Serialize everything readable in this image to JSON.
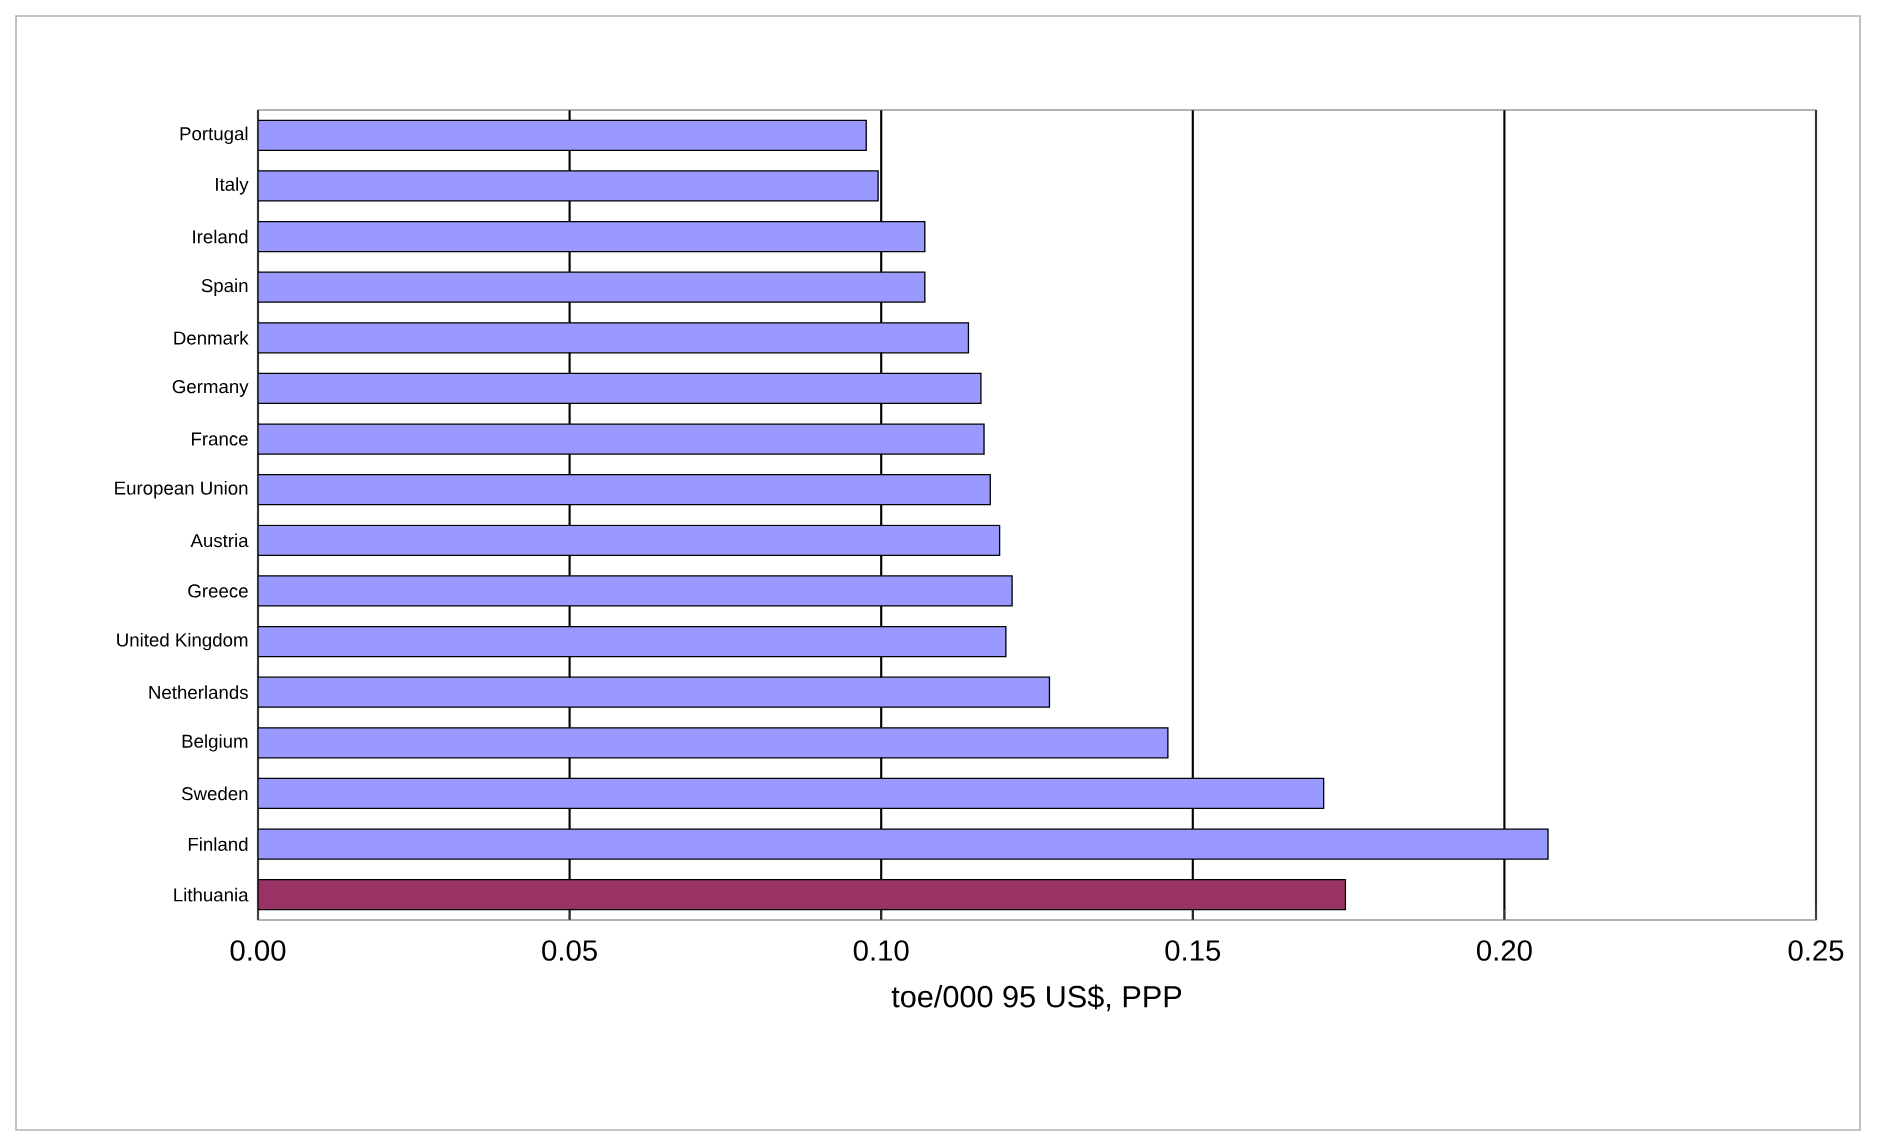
{
  "chart_data": {
    "type": "bar",
    "orientation": "horizontal",
    "xlabel": "toe/000 95  US$, PPP",
    "categories": [
      "Portugal",
      "Italy",
      "Ireland",
      "Spain",
      "Denmark",
      "Germany",
      "France",
      "European Union",
      "Austria",
      "Greece",
      "United Kingdom",
      "Netherlands",
      "Belgium",
      "Sweden",
      "Finland",
      "Lithuania"
    ],
    "values": [
      0.0976,
      0.0995,
      0.107,
      0.107,
      0.114,
      0.116,
      0.1165,
      0.1175,
      0.119,
      0.121,
      0.12,
      0.127,
      0.146,
      0.171,
      0.207,
      0.1745
    ],
    "colors": [
      "#9999ff",
      "#9999ff",
      "#9999ff",
      "#9999ff",
      "#9999ff",
      "#9999ff",
      "#9999ff",
      "#9999ff",
      "#9999ff",
      "#9999ff",
      "#9999ff",
      "#9999ff",
      "#9999ff",
      "#9999ff",
      "#9999ff",
      "#993366"
    ],
    "xlim": [
      0,
      0.25
    ],
    "xticks": [
      {
        "value": 0,
        "label": "0.00"
      },
      {
        "value": 0.05,
        "label": "0.05"
      },
      {
        "value": 0.1,
        "label": "0.10"
      },
      {
        "value": 0.15,
        "label": "0.15"
      },
      {
        "value": 0.2,
        "label": "0.20"
      },
      {
        "value": 0.25,
        "label": "0.25"
      }
    ],
    "grid": "x"
  }
}
